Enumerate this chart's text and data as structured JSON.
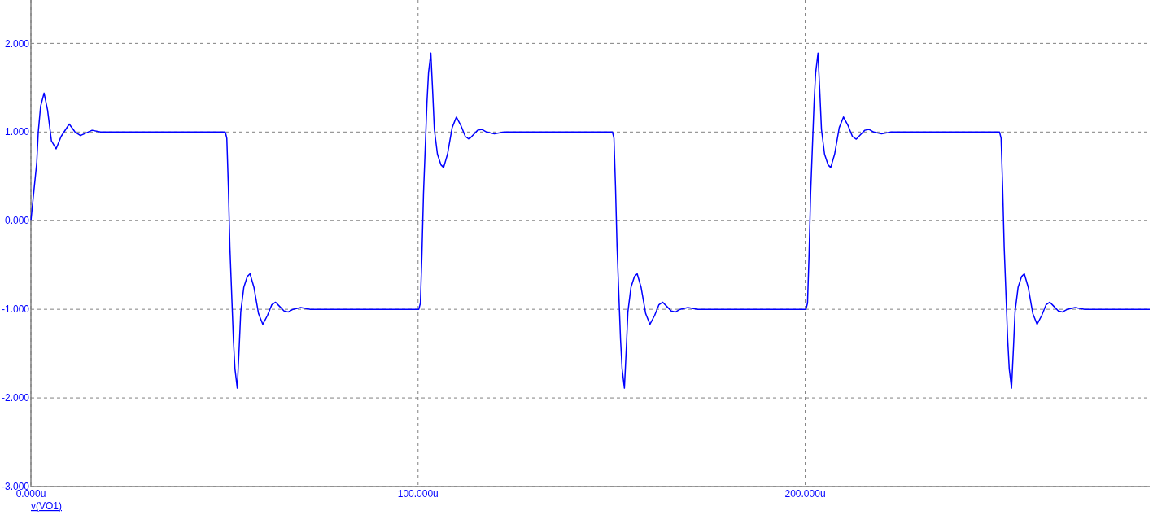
{
  "chart_data": {
    "type": "line",
    "legend": "bottom left",
    "grid": true,
    "line_style": "solid",
    "marker": "none",
    "xlim": [
      0,
      289
    ],
    "ylim": [
      -3,
      2.49
    ],
    "xticks": [
      {
        "value": 0,
        "label": "0.000u"
      },
      {
        "value": 100,
        "label": "100.000u"
      },
      {
        "value": 200,
        "label": "200.000u"
      }
    ],
    "yticks": [
      {
        "value": -3,
        "label": "-3.000"
      },
      {
        "value": -2,
        "label": "-2.000"
      },
      {
        "value": -1,
        "label": "-1.000"
      },
      {
        "value": 0,
        "label": "0.000"
      },
      {
        "value": 1,
        "label": "1.000"
      },
      {
        "value": 2,
        "label": "2.000"
      }
    ],
    "series": [
      {
        "name": "v(VO1)",
        "color": "#0000ff",
        "x": [
          0,
          0.8,
          1.5,
          1.9,
          2.5,
          3.4,
          4.3,
          5.3,
          6.5,
          7.8,
          9.9,
          11.4,
          12.8,
          15.8,
          18,
          50.2,
          50.6,
          51,
          51.4,
          51.9,
          52.3,
          52.7,
          53.3,
          53.8,
          54.2,
          55,
          55.9,
          56.6,
          57.6,
          58.8,
          59.9,
          61.1,
          62.2,
          63.2,
          64.3,
          65.4,
          66.5,
          67.7,
          69.7,
          72.2,
          100.2,
          100.6,
          101,
          101.4,
          101.9,
          102.3,
          102.7,
          103.3,
          103.8,
          104.2,
          105,
          105.9,
          106.6,
          107.6,
          108.8,
          109.9,
          111.1,
          112.2,
          113.2,
          114.3,
          115.4,
          116.5,
          117.7,
          119.7,
          122.2,
          150.2,
          150.6,
          151,
          151.4,
          151.9,
          152.3,
          152.7,
          153.3,
          153.8,
          154.2,
          155,
          155.9,
          156.6,
          157.6,
          158.8,
          159.9,
          161.1,
          162.2,
          163.2,
          164.3,
          165.4,
          166.5,
          167.7,
          169.7,
          172.2,
          200.2,
          200.6,
          201,
          201.4,
          201.9,
          202.3,
          202.7,
          203.3,
          203.8,
          204.2,
          205,
          205.9,
          206.6,
          207.6,
          208.8,
          209.9,
          211.1,
          212.2,
          213.2,
          214.3,
          215.4,
          216.5,
          217.7,
          219.7,
          222.2,
          250.2,
          250.6,
          251,
          251.4,
          251.9,
          252.3,
          252.7,
          253.3,
          253.8,
          254.2,
          255,
          255.9,
          256.6,
          257.6,
          258.8,
          259.9,
          261.1,
          262.2,
          263.2,
          264.3,
          265.4,
          266.5,
          267.7,
          269.7,
          272.2,
          289
        ],
        "values": [
          0,
          0.35,
          0.65,
          1,
          1.29,
          1.44,
          1.25,
          0.9,
          0.81,
          0.95,
          1.09,
          1,
          0.96,
          1.02,
          1,
          1,
          0.93,
          0.38,
          -0.3,
          -0.88,
          -1.34,
          -1.67,
          -1.89,
          -1.43,
          -1.03,
          -0.75,
          -0.63,
          -0.6,
          -0.75,
          -1.05,
          -1.17,
          -1.07,
          -0.95,
          -0.92,
          -0.97,
          -1.02,
          -1.03,
          -1,
          -0.98,
          -1,
          -1,
          -0.93,
          -0.38,
          0.3,
          0.88,
          1.34,
          1.67,
          1.89,
          1.43,
          1.03,
          0.75,
          0.63,
          0.6,
          0.75,
          1.05,
          1.17,
          1.07,
          0.95,
          0.92,
          0.97,
          1.02,
          1.03,
          1,
          0.98,
          1,
          1,
          0.93,
          0.38,
          -0.3,
          -0.88,
          -1.34,
          -1.67,
          -1.89,
          -1.43,
          -1.03,
          -0.75,
          -0.63,
          -0.6,
          -0.75,
          -1.05,
          -1.17,
          -1.07,
          -0.95,
          -0.92,
          -0.97,
          -1.02,
          -1.03,
          -1,
          -0.98,
          -1,
          -1,
          -0.93,
          -0.38,
          0.3,
          0.88,
          1.34,
          1.67,
          1.89,
          1.43,
          1.03,
          0.75,
          0.63,
          0.6,
          0.75,
          1.05,
          1.17,
          1.07,
          0.95,
          0.92,
          0.97,
          1.02,
          1.03,
          1,
          0.98,
          1,
          1,
          0.93,
          0.38,
          -0.3,
          -0.88,
          -1.34,
          -1.67,
          -1.89,
          -1.43,
          -1.03,
          -0.75,
          -0.63,
          -0.6,
          -0.75,
          -1.05,
          -1.17,
          -1.07,
          -0.95,
          -0.92,
          -0.97,
          -1.02,
          -1.03,
          -1,
          -0.98,
          -1,
          -1
        ]
      }
    ]
  }
}
